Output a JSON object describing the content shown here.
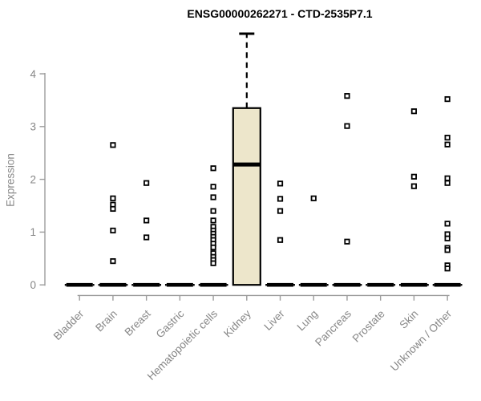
{
  "chart_data": {
    "type": "boxplot",
    "title": "ENSG00000262271 - CTD-2535P7.1",
    "ylabel": "Expression",
    "xlabel": "",
    "ylim": [
      0,
      4.85
    ],
    "yticks": [
      0,
      1,
      2,
      3,
      4
    ],
    "grid": "off",
    "legend": "none",
    "categories": [
      "Bladder",
      "Brain",
      "Breast",
      "Gastric",
      "Hematopoietic cells",
      "Kidney",
      "Liver",
      "Lung",
      "Pancreas",
      "Prostate",
      "Skin",
      "Unknown / Other"
    ],
    "series": [
      {
        "label": "Bladder",
        "q1": 0,
        "median": 0,
        "q3": 0,
        "whisker_low": 0,
        "whisker_high": 0,
        "outliers": []
      },
      {
        "label": "Brain",
        "q1": 0,
        "median": 0,
        "q3": 0,
        "whisker_low": 0,
        "whisker_high": 0,
        "outliers": [
          2.65,
          1.64,
          1.52,
          1.44,
          1.03,
          0.45
        ]
      },
      {
        "label": "Breast",
        "q1": 0,
        "median": 0,
        "q3": 0,
        "whisker_low": 0,
        "whisker_high": 0,
        "outliers": [
          1.93,
          1.22,
          0.9
        ]
      },
      {
        "label": "Gastric",
        "q1": 0,
        "median": 0,
        "q3": 0,
        "whisker_low": 0,
        "whisker_high": 0,
        "outliers": []
      },
      {
        "label": "Hematopoietic cells",
        "q1": 0,
        "median": 0,
        "q3": 0,
        "whisker_low": 0,
        "whisker_high": 0,
        "outliers": [
          2.21,
          1.86,
          1.66,
          1.4,
          1.22,
          1.1,
          1.03,
          0.97,
          0.91,
          0.85,
          0.78,
          0.71,
          0.6,
          0.53,
          0.47,
          0.41
        ]
      },
      {
        "label": "Kidney",
        "q1": 0,
        "median": 2.28,
        "q3": 3.35,
        "whisker_low": 0,
        "whisker_high": 4.76,
        "outliers": []
      },
      {
        "label": "Liver",
        "q1": 0,
        "median": 0,
        "q3": 0,
        "whisker_low": 0,
        "whisker_high": 0,
        "outliers": [
          1.92,
          1.63,
          1.4,
          0.85
        ]
      },
      {
        "label": "Lung",
        "q1": 0,
        "median": 0,
        "q3": 0,
        "whisker_low": 0,
        "whisker_high": 0,
        "outliers": [
          1.64
        ]
      },
      {
        "label": "Pancreas",
        "q1": 0,
        "median": 0,
        "q3": 0,
        "whisker_low": 0,
        "whisker_high": 0,
        "outliers": [
          3.58,
          3.01,
          0.82
        ]
      },
      {
        "label": "Prostate",
        "q1": 0,
        "median": 0,
        "q3": 0,
        "whisker_low": 0,
        "whisker_high": 0,
        "outliers": []
      },
      {
        "label": "Skin",
        "q1": 0,
        "median": 0,
        "q3": 0,
        "whisker_low": 0,
        "whisker_high": 0,
        "outliers": [
          3.29,
          2.05,
          1.87
        ]
      },
      {
        "label": "Unknown / Other",
        "q1": 0,
        "median": 0,
        "q3": 0,
        "whisker_low": 0,
        "whisker_high": 0,
        "outliers": [
          3.52,
          2.79,
          2.66,
          2.02,
          1.93,
          1.16,
          0.96,
          0.88,
          0.7,
          0.66,
          0.37,
          0.31
        ]
      }
    ],
    "colors": {
      "box_fill": "#EDE6CB",
      "box_border": "#000000",
      "median": "#000000",
      "outlier_stroke": "#000000",
      "outlier_fill": "#FFFFFF",
      "axis_line": "#9C9C9C",
      "tick_text": "#878787",
      "title_text": "#000000"
    }
  }
}
